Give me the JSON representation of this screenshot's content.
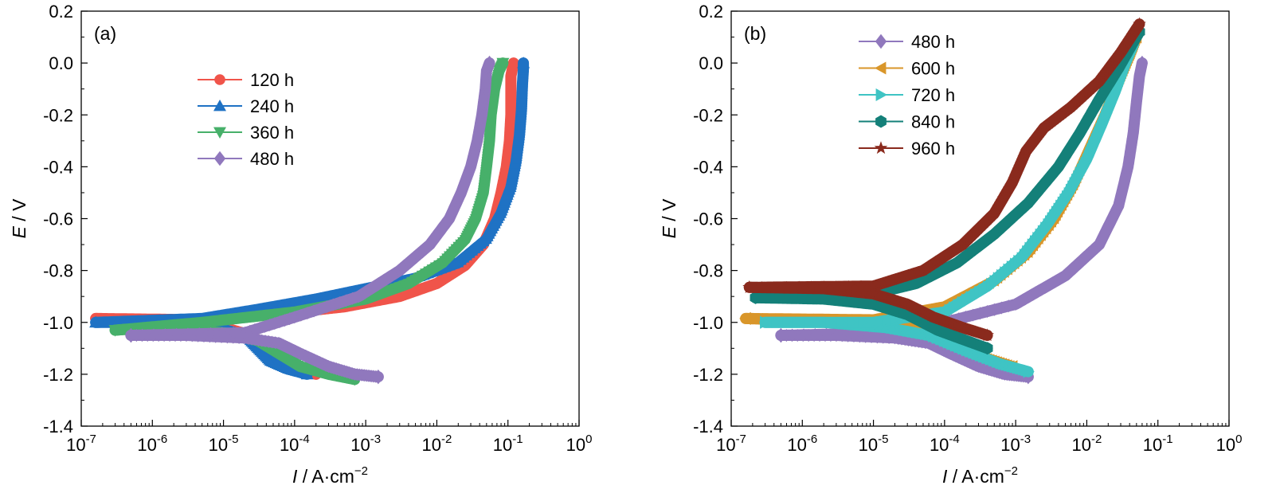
{
  "chart_data": [
    {
      "type": "line",
      "panel_label": "(a)",
      "xlabel": {
        "italic": "I",
        "rest": " / A·cm",
        "sup": "−2"
      },
      "ylabel": {
        "italic": "E",
        "rest": " / V"
      },
      "xscale": "log",
      "xlim": [
        1e-07,
        1
      ],
      "ylim": [
        -1.4,
        0.2
      ],
      "y_ticks": [
        0.2,
        0.0,
        -0.2,
        -0.4,
        -0.6,
        -0.8,
        -1.0,
        -1.2,
        -1.4
      ],
      "y_tick_labels": [
        "0.2",
        "0.0",
        "-0.2",
        "-0.4",
        "-0.6",
        "-0.8",
        "-1.0",
        "-1.2",
        "-1.4"
      ],
      "x_ticks": [
        {
          "base": "10",
          "exp": "-7"
        },
        {
          "base": "10",
          "exp": "-6"
        },
        {
          "base": "10",
          "exp": "-5"
        },
        {
          "base": "10",
          "exp": "-4"
        },
        {
          "base": "10",
          "exp": "-3"
        },
        {
          "base": "10",
          "exp": "-2"
        },
        {
          "base": "10",
          "exp": "-1"
        },
        {
          "base": "10",
          "exp": "0"
        }
      ],
      "legend_position": "top-left",
      "grid": false,
      "series": [
        {
          "name": "120 h",
          "color": "#f0544a",
          "marker": "circle",
          "cathodic": [
            [
              0.0002,
              -1.2
            ],
            [
              0.00012,
              -1.18
            ],
            [
              7e-05,
              -1.15
            ],
            [
              4e-05,
              -1.1
            ],
            [
              2.5e-05,
              -1.05
            ],
            [
              1e-05,
              -1.02
            ],
            [
              1e-06,
              -1.0
            ],
            [
              1.6e-07,
              -0.985
            ]
          ],
          "anodic": [
            [
              1.6e-07,
              -0.985
            ],
            [
              5e-06,
              -0.99
            ],
            [
              5e-05,
              -0.97
            ],
            [
              0.0005,
              -0.94
            ],
            [
              0.003,
              -0.9
            ],
            [
              0.01,
              -0.85
            ],
            [
              0.025,
              -0.78
            ],
            [
              0.045,
              -0.7
            ],
            [
              0.065,
              -0.6
            ],
            [
              0.08,
              -0.5
            ],
            [
              0.095,
              -0.4
            ],
            [
              0.105,
              -0.3
            ],
            [
              0.11,
              -0.2
            ],
            [
              0.11,
              -0.1
            ],
            [
              0.11,
              -0.05
            ],
            [
              0.12,
              0.0
            ]
          ]
        },
        {
          "name": "240 h",
          "color": "#1f72c4",
          "marker": "triangle-up",
          "cathodic": [
            [
              0.00015,
              -1.2
            ],
            [
              8e-05,
              -1.18
            ],
            [
              4.5e-05,
              -1.15
            ],
            [
              3e-05,
              -1.1
            ],
            [
              2e-05,
              -1.05
            ],
            [
              8e-06,
              -1.02
            ],
            [
              1e-06,
              -1.0
            ],
            [
              1.6e-07,
              -1.0
            ]
          ],
          "anodic": [
            [
              1.6e-07,
              -1.0
            ],
            [
              5e-06,
              -0.985
            ],
            [
              3e-05,
              -0.95
            ],
            [
              0.0002,
              -0.91
            ],
            [
              0.001,
              -0.87
            ],
            [
              0.005,
              -0.83
            ],
            [
              0.02,
              -0.77
            ],
            [
              0.05,
              -0.68
            ],
            [
              0.08,
              -0.58
            ],
            [
              0.11,
              -0.48
            ],
            [
              0.13,
              -0.38
            ],
            [
              0.145,
              -0.28
            ],
            [
              0.155,
              -0.18
            ],
            [
              0.16,
              -0.08
            ],
            [
              0.165,
              -0.02
            ],
            [
              0.165,
              0.0
            ]
          ]
        },
        {
          "name": "360 h",
          "color": "#47b06a",
          "marker": "triangle-down",
          "cathodic": [
            [
              0.0007,
              -1.22
            ],
            [
              0.0003,
              -1.2
            ],
            [
              0.00012,
              -1.17
            ],
            [
              6e-05,
              -1.12
            ],
            [
              3e-05,
              -1.07
            ],
            [
              1e-05,
              -1.04
            ],
            [
              1e-06,
              -1.02
            ],
            [
              3e-07,
              -1.03
            ]
          ],
          "anodic": [
            [
              3e-07,
              -1.03
            ],
            [
              5e-06,
              -1.0
            ],
            [
              0.0001,
              -0.96
            ],
            [
              0.001,
              -0.91
            ],
            [
              0.004,
              -0.85
            ],
            [
              0.012,
              -0.77
            ],
            [
              0.025,
              -0.68
            ],
            [
              0.035,
              -0.6
            ],
            [
              0.045,
              -0.5
            ],
            [
              0.05,
              -0.4
            ],
            [
              0.055,
              -0.3
            ],
            [
              0.058,
              -0.2
            ],
            [
              0.065,
              -0.1
            ],
            [
              0.075,
              -0.03
            ],
            [
              0.085,
              0.0
            ]
          ]
        },
        {
          "name": "480 h",
          "color": "#9078bd",
          "marker": "diamond",
          "cathodic": [
            [
              0.0015,
              -1.21
            ],
            [
              0.0007,
              -1.2
            ],
            [
              0.0003,
              -1.17
            ],
            [
              0.00012,
              -1.12
            ],
            [
              6e-05,
              -1.08
            ],
            [
              2e-05,
              -1.06
            ],
            [
              3e-06,
              -1.05
            ],
            [
              5e-07,
              -1.05
            ]
          ],
          "anodic": [
            [
              5e-07,
              -1.05
            ],
            [
              2e-05,
              -1.04
            ],
            [
              0.0001,
              -0.98
            ],
            [
              0.0008,
              -0.9
            ],
            [
              0.003,
              -0.8
            ],
            [
              0.008,
              -0.7
            ],
            [
              0.015,
              -0.6
            ],
            [
              0.022,
              -0.5
            ],
            [
              0.03,
              -0.4
            ],
            [
              0.037,
              -0.3
            ],
            [
              0.043,
              -0.2
            ],
            [
              0.048,
              -0.1
            ],
            [
              0.05,
              -0.03
            ],
            [
              0.055,
              0.0
            ]
          ]
        }
      ]
    },
    {
      "type": "line",
      "panel_label": "(b)",
      "xlabel": {
        "italic": "I",
        "rest": " / A·cm",
        "sup": "−2"
      },
      "ylabel": {
        "italic": "E",
        "rest": " / V"
      },
      "xscale": "log",
      "xlim": [
        1e-07,
        1
      ],
      "ylim": [
        -1.4,
        0.2
      ],
      "y_ticks": [
        0.2,
        0.0,
        -0.2,
        -0.4,
        -0.6,
        -0.8,
        -1.0,
        -1.2,
        -1.4
      ],
      "y_tick_labels": [
        "0.2",
        "0.0",
        "-0.2",
        "-0.4",
        "-0.6",
        "-0.8",
        "-1.0",
        "-1.2",
        "-1.4"
      ],
      "x_ticks": [
        {
          "base": "10",
          "exp": "-7"
        },
        {
          "base": "10",
          "exp": "-6"
        },
        {
          "base": "10",
          "exp": "-5"
        },
        {
          "base": "10",
          "exp": "-4"
        },
        {
          "base": "10",
          "exp": "-3"
        },
        {
          "base": "10",
          "exp": "-2"
        },
        {
          "base": "10",
          "exp": "-1"
        },
        {
          "base": "10",
          "exp": "0"
        }
      ],
      "legend_position": "top-left",
      "grid": false,
      "series": [
        {
          "name": "480 h",
          "color": "#9078bd",
          "marker": "diamond",
          "cathodic": [
            [
              0.0015,
              -1.21
            ],
            [
              0.0007,
              -1.2
            ],
            [
              0.0003,
              -1.17
            ],
            [
              0.00012,
              -1.12
            ],
            [
              6e-05,
              -1.08
            ],
            [
              2e-05,
              -1.06
            ],
            [
              3e-06,
              -1.05
            ],
            [
              5e-07,
              -1.05
            ]
          ],
          "anodic": [
            [
              5e-07,
              -1.05
            ],
            [
              2e-05,
              -1.04
            ],
            [
              0.0001,
              -1.0
            ],
            [
              0.001,
              -0.93
            ],
            [
              0.005,
              -0.82
            ],
            [
              0.015,
              -0.7
            ],
            [
              0.028,
              -0.55
            ],
            [
              0.038,
              -0.4
            ],
            [
              0.045,
              -0.27
            ],
            [
              0.05,
              -0.15
            ],
            [
              0.055,
              -0.05
            ],
            [
              0.06,
              0.0
            ]
          ]
        },
        {
          "name": "600 h",
          "color": "#d9962a",
          "marker": "triangle-left",
          "cathodic": [
            [
              0.0009,
              -1.17
            ],
            [
              0.0004,
              -1.14
            ],
            [
              0.0002,
              -1.1
            ],
            [
              8e-05,
              -1.05
            ],
            [
              3e-05,
              -1.01
            ],
            [
              5e-06,
              -0.99
            ],
            [
              5e-07,
              -0.99
            ],
            [
              1.6e-07,
              -0.985
            ]
          ],
          "anodic": [
            [
              1.6e-07,
              -0.985
            ],
            [
              1e-05,
              -0.99
            ],
            [
              0.0001,
              -0.94
            ],
            [
              0.0005,
              -0.84
            ],
            [
              0.0015,
              -0.73
            ],
            [
              0.0035,
              -0.6
            ],
            [
              0.0065,
              -0.47
            ],
            [
              0.011,
              -0.33
            ],
            [
              0.018,
              -0.2
            ],
            [
              0.028,
              -0.07
            ],
            [
              0.04,
              0.03
            ],
            [
              0.05,
              0.1
            ]
          ]
        },
        {
          "name": "720 h",
          "color": "#3fc4c4",
          "marker": "triangle-right",
          "cathodic": [
            [
              0.0015,
              -1.19
            ],
            [
              0.0006,
              -1.16
            ],
            [
              0.0002,
              -1.11
            ],
            [
              6e-05,
              -1.05
            ],
            [
              1.5e-05,
              -1.02
            ],
            [
              2e-06,
              -1.0
            ],
            [
              3e-07,
              -1.0
            ]
          ],
          "anodic": [
            [
              3e-07,
              -1.0
            ],
            [
              1e-05,
              -1.0
            ],
            [
              0.0001,
              -0.96
            ],
            [
              0.0004,
              -0.86
            ],
            [
              0.0012,
              -0.75
            ],
            [
              0.0028,
              -0.62
            ],
            [
              0.0055,
              -0.5
            ],
            [
              0.01,
              -0.37
            ],
            [
              0.016,
              -0.24
            ],
            [
              0.025,
              -0.11
            ],
            [
              0.035,
              0.0
            ],
            [
              0.045,
              0.07
            ]
          ]
        },
        {
          "name": "840 h",
          "color": "#148079",
          "marker": "hexagon",
          "cathodic": [
            [
              0.0004,
              -1.1
            ],
            [
              0.0002,
              -1.07
            ],
            [
              8e-05,
              -1.03
            ],
            [
              3e-05,
              -0.97
            ],
            [
              1e-05,
              -0.93
            ],
            [
              2e-06,
              -0.91
            ],
            [
              2.2e-07,
              -0.905
            ]
          ],
          "anodic": [
            [
              2.2e-07,
              -0.905
            ],
            [
              1e-05,
              -0.89
            ],
            [
              4e-05,
              -0.85
            ],
            [
              0.00015,
              -0.77
            ],
            [
              0.0005,
              -0.66
            ],
            [
              0.0015,
              -0.54
            ],
            [
              0.004,
              -0.4
            ],
            [
              0.008,
              -0.27
            ],
            [
              0.015,
              -0.14
            ],
            [
              0.028,
              -0.02
            ],
            [
              0.045,
              0.08
            ],
            [
              0.055,
              0.12
            ]
          ]
        },
        {
          "name": "960 h",
          "color": "#8a2a1d",
          "marker": "star",
          "cathodic": [
            [
              0.0004,
              -1.05
            ],
            [
              0.00018,
              -1.02
            ],
            [
              7e-05,
              -0.98
            ],
            [
              3e-05,
              -0.93
            ],
            [
              1e-05,
              -0.89
            ],
            [
              2e-06,
              -0.87
            ],
            [
              1.8e-07,
              -0.865
            ]
          ],
          "anodic": [
            [
              1.8e-07,
              -0.865
            ],
            [
              1e-05,
              -0.86
            ],
            [
              5e-05,
              -0.8
            ],
            [
              0.00018,
              -0.7
            ],
            [
              0.0005,
              -0.58
            ],
            [
              0.0009,
              -0.46
            ],
            [
              0.0014,
              -0.34
            ],
            [
              0.0025,
              -0.25
            ],
            [
              0.006,
              -0.17
            ],
            [
              0.015,
              -0.07
            ],
            [
              0.03,
              0.04
            ],
            [
              0.055,
              0.15
            ]
          ]
        }
      ]
    }
  ]
}
